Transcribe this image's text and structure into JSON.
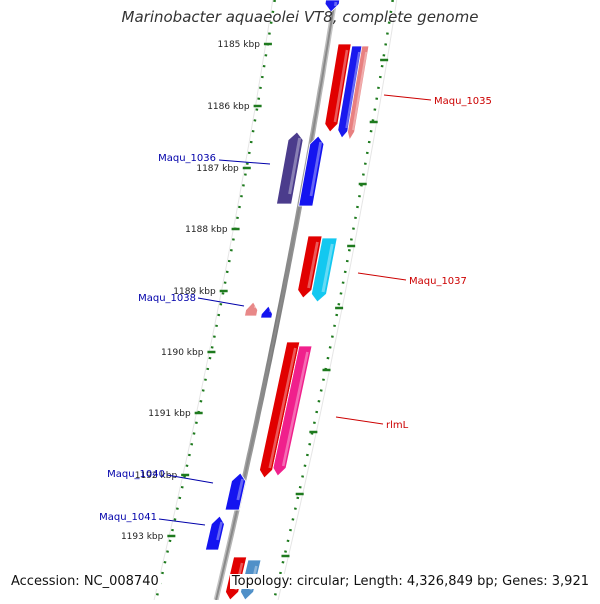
{
  "title": "Marinobacter aquaeolei VT8, complete genome",
  "footer": {
    "accession": "Accession: NC_008740",
    "topology": "Topology: circular; Length: 4,326,849 bp; Genes: 3,921"
  },
  "colors": {
    "ruler_ticks": "#1e7a1e",
    "backbone": "#8a8a8a",
    "forward_label": "#cc0000",
    "reverse_label": "#0000aa"
  },
  "scale": {
    "unit": "kbp",
    "ticks": [
      "1185 kbp",
      "1186 kbp",
      "1187 kbp",
      "1188 kbp",
      "1189 kbp",
      "1190 kbp",
      "1191 kbp",
      "1192 kbp",
      "1193 kbp"
    ]
  },
  "genes": [
    {
      "label": "",
      "strand": "+",
      "color": "#1a1aee"
    },
    {
      "label": "",
      "strand": "+",
      "color": "#e10000"
    },
    {
      "label": "Maqu_1035",
      "strand": "+",
      "color": "#1a1aee"
    },
    {
      "label": "",
      "strand": "+",
      "color": "#e88080"
    },
    {
      "label": "Maqu_1036",
      "strand": "-",
      "color": "#4b3c8c"
    },
    {
      "label": "",
      "strand": "-",
      "color": "#1414f0"
    },
    {
      "label": "",
      "strand": "+",
      "color": "#e10000"
    },
    {
      "label": "Maqu_1037",
      "strand": "+",
      "color": "#13c8f0"
    },
    {
      "label": "",
      "strand": "-",
      "color": "#e88888"
    },
    {
      "label": "Maqu_1038",
      "strand": "-",
      "color": "#1414f0"
    },
    {
      "label": "",
      "strand": "+",
      "color": "#e10000"
    },
    {
      "label": "rlmL",
      "strand": "+",
      "color": "#f0208c"
    },
    {
      "label": "Maqu_1040",
      "strand": "-",
      "color": "#1414f0"
    },
    {
      "label": "Maqu_1041",
      "strand": "-",
      "color": "#1414f0"
    },
    {
      "label": "",
      "strand": "+",
      "color": "#e10000"
    },
    {
      "label": "",
      "strand": "+",
      "color": "#5090c8"
    }
  ]
}
